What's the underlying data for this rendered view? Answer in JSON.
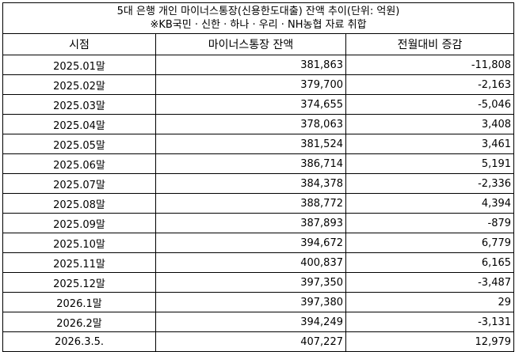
{
  "title": {
    "line1": "5대 은행 개인 마이너스통장(신용한도대출) 잔액 추이(단위: 억원)",
    "line2": "※KB국민 · 신한 · 하나 · 우리 · NH농협 자료 취합"
  },
  "columns": [
    "시점",
    "마이너스통장 잔액",
    "전월대비 증감"
  ],
  "rows": [
    [
      "2025.01말",
      "381,863",
      "-11,808"
    ],
    [
      "2025.02말",
      "379,700",
      "-2,163"
    ],
    [
      "2025.03말",
      "374,655",
      "-5,046"
    ],
    [
      "2025.04말",
      "378,063",
      "3,408"
    ],
    [
      "2025.05말",
      "381,524",
      "3,461"
    ],
    [
      "2025.06말",
      "386,714",
      "5,191"
    ],
    [
      "2025.07말",
      "384,378",
      "-2,336"
    ],
    [
      "2025.08말",
      "388,772",
      "4,394"
    ],
    [
      "2025.09말",
      "387,893",
      "-879"
    ],
    [
      "2025.10말",
      "394,672",
      "6,779"
    ],
    [
      "2025.11말",
      "400,837",
      "6,165"
    ],
    [
      "2025.12말",
      "397,350",
      "-3,487"
    ],
    [
      "2026.1말",
      "397,380",
      "29"
    ],
    [
      "2026.2말",
      "394,249",
      "-3,131"
    ],
    [
      "2026.3.5.",
      "407,227",
      "12,979"
    ]
  ]
}
